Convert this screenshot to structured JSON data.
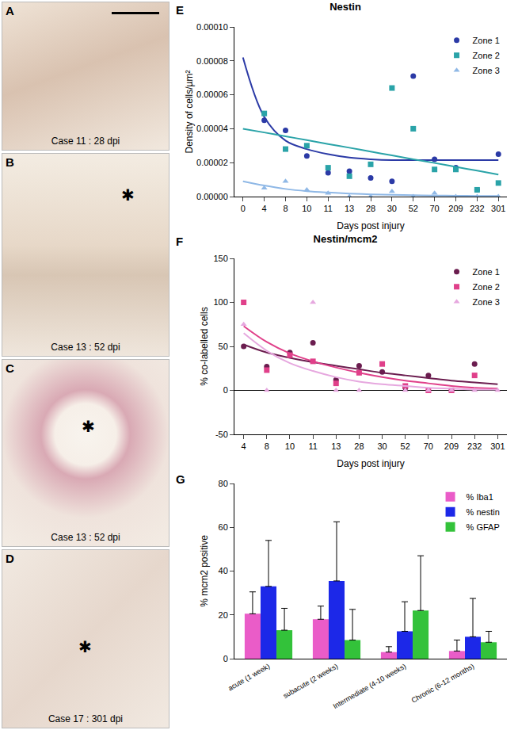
{
  "panels": [
    {
      "label": "A",
      "caption": "Case 11 : 28 dpi"
    },
    {
      "label": "B",
      "caption": "Case 13 : 52 dpi",
      "symbol": "✱"
    },
    {
      "label": "C",
      "caption": "Case 13 : 52 dpi",
      "symbol": "✱"
    },
    {
      "label": "D",
      "caption": "Case 17 : 301 dpi",
      "symbol": "✱"
    }
  ],
  "chart_data": [
    {
      "panel": "E",
      "type": "scatter",
      "title": "Nestin",
      "x_label": "Days post injury",
      "y_label": "Density of cells/µm²",
      "categories": [
        "0",
        "4",
        "8",
        "10",
        "11",
        "13",
        "28",
        "30",
        "52",
        "70",
        "209",
        "232",
        "301"
      ],
      "ylim": [
        0,
        0.0001
      ],
      "yticks": [
        {
          "value": 0,
          "label": "0.00000"
        },
        {
          "value": 2e-05,
          "label": "0.00002"
        },
        {
          "value": 4e-05,
          "label": "0.00004"
        },
        {
          "value": 6e-05,
          "label": "0.00006"
        },
        {
          "value": 8e-05,
          "label": "0.00008"
        },
        {
          "value": 0.0001,
          "label": "0.00010"
        }
      ],
      "legend": "top right",
      "series": [
        {
          "name": "Zone 1",
          "color": "#2b3aa6",
          "marker": "circle",
          "values": [
            null,
            4.5e-05,
            3.9e-05,
            2.4e-05,
            1.4e-05,
            1.5e-05,
            1.1e-05,
            9e-06,
            7.1e-05,
            2.2e-05,
            1.7e-05,
            4e-06,
            2.5e-05
          ],
          "fit": [
            8.2e-05,
            4.7e-05,
            3.3e-05,
            2.8e-05,
            2.5e-05,
            2.3e-05,
            2.2e-05,
            2.15e-05,
            2.15e-05,
            2.15e-05,
            2.15e-05,
            2.15e-05,
            2.15e-05
          ]
        },
        {
          "name": "Zone 2",
          "color": "#2aa3a8",
          "marker": "square",
          "values": [
            null,
            4.9e-05,
            2.8e-05,
            3e-05,
            1.7e-05,
            1.2e-05,
            1.9e-05,
            6.4e-05,
            4e-05,
            1.6e-05,
            1.6e-05,
            4e-06,
            8e-06
          ],
          "fit": [
            4e-05,
            3.78e-05,
            3.55e-05,
            3.33e-05,
            3.1e-05,
            2.88e-05,
            2.65e-05,
            2.43e-05,
            2.2e-05,
            1.98e-05,
            1.75e-05,
            1.53e-05,
            1.3e-05
          ]
        },
        {
          "name": "Zone 3",
          "color": "#8fb8e6",
          "marker": "triangle-up",
          "values": [
            null,
            5e-06,
            9e-06,
            4e-06,
            2e-06,
            0,
            0,
            3e-06,
            0,
            2e-06,
            0,
            0,
            0
          ],
          "fit": [
            9e-06,
            6.5e-06,
            4.5e-06,
            3.2e-06,
            2.4e-06,
            1.8e-06,
            1.3e-06,
            1e-06,
            8e-07,
            6e-07,
            5e-07,
            4e-07,
            3e-07
          ]
        }
      ]
    },
    {
      "panel": "F",
      "type": "scatter",
      "title": "Nestin/mcm2",
      "x_label": "Days post injury",
      "y_label": "% co-labelled cells",
      "categories": [
        "4",
        "8",
        "10",
        "11",
        "13",
        "28",
        "30",
        "52",
        "70",
        "209",
        "232",
        "301"
      ],
      "ylim": [
        -50,
        150
      ],
      "yticks": [
        -50,
        0,
        50,
        100,
        150
      ],
      "legend": "top right",
      "series": [
        {
          "name": "Zone 1",
          "color": "#6b1d4f",
          "marker": "circle",
          "values": [
            50,
            27,
            43,
            54,
            12,
            28,
            21,
            3,
            17,
            0,
            30,
            null
          ],
          "fit": [
            52,
            43,
            37,
            32,
            28,
            24,
            20,
            17,
            14,
            11,
            9,
            7
          ]
        },
        {
          "name": "Zone 2",
          "color": "#e0408a",
          "marker": "square",
          "values": [
            100,
            23,
            40,
            33,
            8,
            20,
            30,
            5,
            0,
            0,
            17,
            null
          ],
          "fit": [
            73,
            55,
            42,
            33,
            26,
            20,
            15,
            11,
            8,
            5,
            3,
            2
          ]
        },
        {
          "name": "Zone 3",
          "color": "#e6a8df",
          "marker": "triangle-up",
          "values": [
            75,
            0,
            null,
            100,
            0,
            0,
            null,
            0,
            0,
            0,
            0,
            0
          ],
          "fit": [
            65,
            45,
            31,
            22,
            15,
            10,
            7,
            5,
            3,
            2,
            1,
            1
          ]
        }
      ]
    },
    {
      "panel": "G",
      "type": "bar",
      "y_label": "% mcm2 positive",
      "categories": [
        "acute (1 week)",
        "subacute (2 weeks)",
        "Intermediate (4-10 weeks)",
        "Chronic (6-12 months)"
      ],
      "ylim": [
        0,
        80
      ],
      "yticks": [
        0,
        20,
        40,
        60,
        80
      ],
      "legend": "top right",
      "series": [
        {
          "name": "% Iba1",
          "color": "#ea5cc8",
          "values": [
            20.5,
            18,
            3,
            3.5
          ],
          "errors": [
            10,
            6,
            2.5,
            5
          ]
        },
        {
          "name": "% nestin",
          "color": "#1c28e8",
          "values": [
            33,
            35.5,
            12.5,
            10
          ],
          "errors": [
            21,
            27,
            13.5,
            17.5
          ]
        },
        {
          "name": "% GFAP",
          "color": "#33c23a",
          "values": [
            13,
            8.5,
            22,
            7.5
          ],
          "errors": [
            10,
            14,
            25,
            5
          ]
        }
      ]
    }
  ]
}
